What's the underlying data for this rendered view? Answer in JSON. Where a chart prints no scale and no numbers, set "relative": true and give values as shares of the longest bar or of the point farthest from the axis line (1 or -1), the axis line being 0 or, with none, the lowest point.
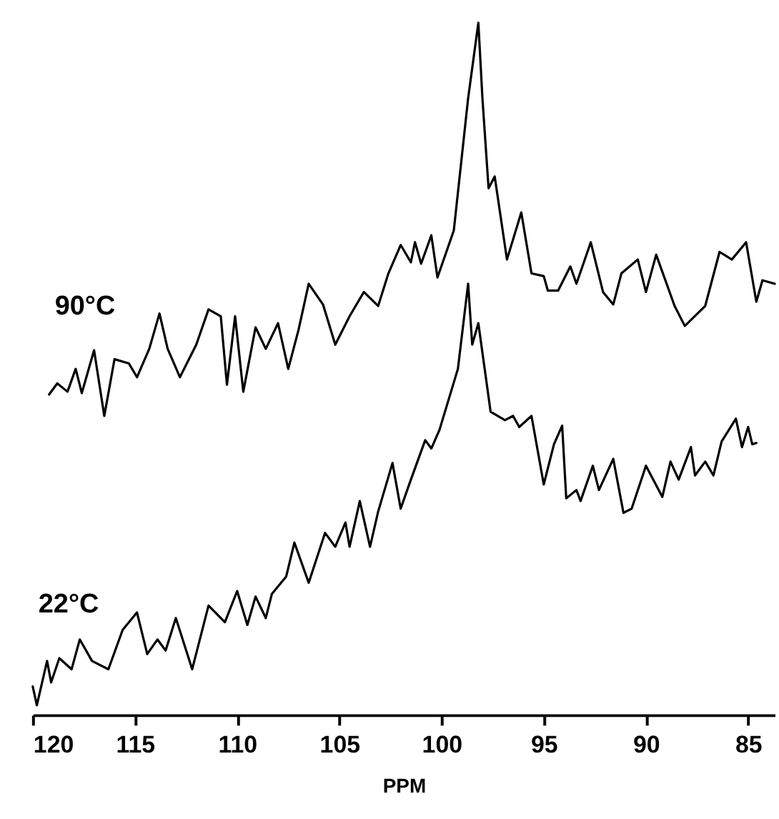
{
  "chart_data": {
    "type": "line",
    "relative": true,
    "xlabel": "PPM",
    "xlim": [
      120,
      83.7
    ],
    "xticks": [
      120,
      115,
      110,
      105,
      100,
      95,
      90,
      85
    ],
    "grid": false,
    "legend": false,
    "marker": "none",
    "line_style": "solid",
    "series": [
      {
        "name": "90°C",
        "color": "#000000",
        "x": [
          119.2,
          118.8,
          118.3,
          117.9,
          117.6,
          117.0,
          116.5,
          116.0,
          115.3,
          114.9,
          114.3,
          113.8,
          113.4,
          112.8,
          112.0,
          111.4,
          110.8,
          110.5,
          110.1,
          109.7,
          109.1,
          108.6,
          108.0,
          107.5,
          107.0,
          106.5,
          105.8,
          105.2,
          104.5,
          103.8,
          103.1,
          102.6,
          102.0,
          101.5,
          101.3,
          101.0,
          100.5,
          100.2,
          99.4,
          98.7,
          98.2,
          98.0,
          97.7,
          97.4,
          96.8,
          96.1,
          95.6,
          95.0,
          94.8,
          94.3,
          93.7,
          93.4,
          92.7,
          92.1,
          91.6,
          91.2,
          90.4,
          90.0,
          89.5,
          88.6,
          88.1,
          87.1,
          86.4,
          85.8,
          85.1,
          84.6,
          84.3,
          83.7
        ],
        "values": [
          0.463,
          0.479,
          0.467,
          0.5,
          0.465,
          0.527,
          0.432,
          0.514,
          0.508,
          0.488,
          0.529,
          0.58,
          0.529,
          0.488,
          0.535,
          0.586,
          0.576,
          0.477,
          0.576,
          0.467,
          0.56,
          0.529,
          0.566,
          0.5,
          0.556,
          0.623,
          0.593,
          0.535,
          0.576,
          0.611,
          0.591,
          0.638,
          0.679,
          0.654,
          0.683,
          0.652,
          0.693,
          0.632,
          0.7,
          0.891,
          1.0,
          0.891,
          0.761,
          0.778,
          0.658,
          0.726,
          0.638,
          0.634,
          0.613,
          0.613,
          0.648,
          0.623,
          0.683,
          0.611,
          0.593,
          0.638,
          0.658,
          0.611,
          0.665,
          0.591,
          0.562,
          0.591,
          0.669,
          0.658,
          0.683,
          0.597,
          0.628,
          0.623
        ]
      },
      {
        "name": "22°C",
        "color": "#000000",
        "x": [
          120.0,
          119.8,
          119.3,
          119.1,
          118.7,
          118.1,
          117.7,
          117.1,
          116.3,
          115.6,
          114.9,
          114.4,
          113.9,
          113.5,
          113.0,
          112.2,
          111.4,
          110.6,
          110.0,
          109.5,
          109.1,
          108.6,
          108.3,
          107.6,
          107.2,
          106.5,
          105.7,
          105.2,
          104.7,
          104.5,
          104.0,
          103.5,
          103.1,
          102.4,
          102.0,
          101.5,
          100.8,
          100.5,
          100.1,
          99.2,
          98.7,
          98.5,
          98.2,
          97.6,
          96.9,
          96.5,
          96.2,
          95.6,
          95.0,
          94.5,
          94.1,
          93.9,
          93.4,
          93.2,
          92.6,
          92.3,
          91.6,
          91.1,
          90.7,
          90.0,
          89.2,
          88.8,
          88.4,
          87.8,
          87.6,
          87.1,
          86.7,
          86.3,
          85.6,
          85.3,
          85.0,
          84.8,
          84.6
        ],
        "values": [
          0.041,
          0.014,
          0.078,
          0.047,
          0.082,
          0.066,
          0.109,
          0.078,
          0.066,
          0.123,
          0.148,
          0.088,
          0.109,
          0.093,
          0.14,
          0.066,
          0.158,
          0.134,
          0.179,
          0.13,
          0.171,
          0.14,
          0.175,
          0.2,
          0.249,
          0.191,
          0.263,
          0.243,
          0.278,
          0.243,
          0.309,
          0.243,
          0.294,
          0.364,
          0.298,
          0.34,
          0.397,
          0.385,
          0.412,
          0.5,
          0.623,
          0.535,
          0.566,
          0.438,
          0.426,
          0.432,
          0.416,
          0.432,
          0.333,
          0.391,
          0.418,
          0.313,
          0.325,
          0.309,
          0.36,
          0.325,
          0.37,
          0.292,
          0.298,
          0.36,
          0.315,
          0.366,
          0.34,
          0.387,
          0.346,
          0.366,
          0.346,
          0.395,
          0.428,
          0.387,
          0.416,
          0.391,
          0.393
        ]
      }
    ]
  }
}
